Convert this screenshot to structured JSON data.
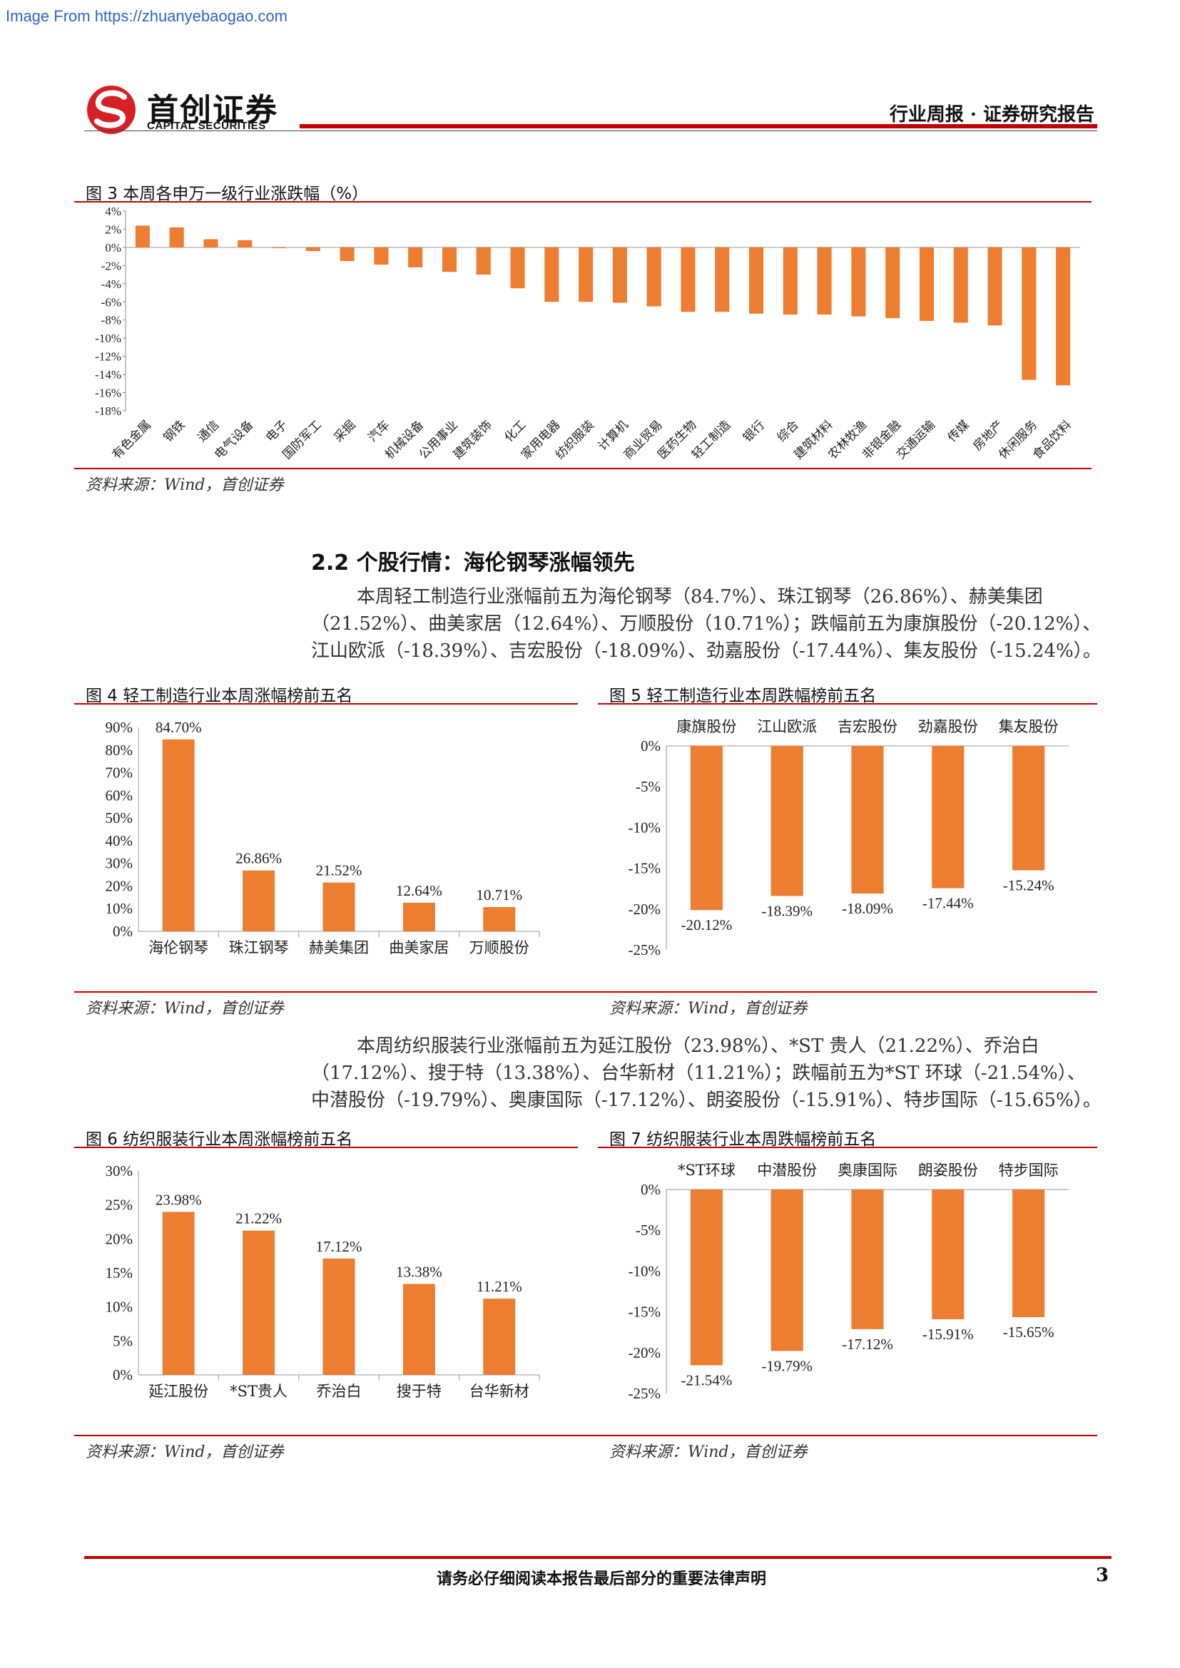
{
  "watermark": "Image From https://zhuanyebaogao.com",
  "header": {
    "logo_cn": "首创证券",
    "logo_en": "CAPITAL SECURITIES",
    "doc_type": "行业周报 · 证券研究报告"
  },
  "figure3": {
    "title": "图 3 本周各申万一级行业涨跌幅（%）",
    "source": "资料来源：Wind，首创证券"
  },
  "section": {
    "title": "2.2 个股行情：海伦钢琴涨幅领先"
  },
  "paragraph1": {
    "line1": "本周轻工制造行业涨幅前五为海伦钢琴（84.7%）、珠江钢琴（26.86%）、赫美集团",
    "line2": "（21.52%）、曲美家居（12.64%）、万顺股份（10.71%）；跌幅前五为康旗股份（-20.12%）、",
    "line3": "江山欧派（-18.39%）、吉宏股份（-18.09%）、劲嘉股份（-17.44%）、集友股份（-15.24%）。"
  },
  "figure4": {
    "title": "图 4 轻工制造行业本周涨幅榜前五名",
    "source": "资料来源：Wind，首创证券"
  },
  "figure5": {
    "title": "图 5 轻工制造行业本周跌幅榜前五名",
    "source": "资料来源：Wind，首创证券"
  },
  "paragraph2": {
    "line1": "本周纺织服装行业涨幅前五为延江股份（23.98%）、*ST 贵人（21.22%）、乔治白",
    "line2": "（17.12%）、搜于特（13.38%）、台华新材（11.21%）；跌幅前五为*ST 环球（-21.54%）、",
    "line3": "中潜股份（-19.79%）、奥康国际（-17.12%）、朗姿股份（-15.91%）、特步国际（-15.65%）。"
  },
  "figure6": {
    "title": "图 6 纺织服装行业本周涨幅榜前五名",
    "source": "资料来源：Wind，首创证券"
  },
  "figure7": {
    "title": "图 7 纺织服装行业本周跌幅榜前五名",
    "source": "资料来源：Wind，首创证券"
  },
  "footer": {
    "disclaimer": "请务必仔细阅读本报告最后部分的重要法律声明",
    "page_number": "3"
  },
  "colors": {
    "bar": "#ed7d31",
    "accent_red": "#c00000"
  },
  "chart_data": [
    {
      "id": "fig3",
      "type": "bar",
      "categories": [
        "有色金属",
        "钢铁",
        "通信",
        "电气设备",
        "电子",
        "国防军工",
        "采掘",
        "汽车",
        "机械设备",
        "公用事业",
        "建筑装饰",
        "化工",
        "家用电器",
        "纺织服装",
        "计算机",
        "商业贸易",
        "医药生物",
        "轻工制造",
        "银行",
        "综合",
        "建筑材料",
        "农林牧渔",
        "非银金融",
        "交通运输",
        "传媒",
        "房地产",
        "休闲服务",
        "食品饮料"
      ],
      "values": [
        2.4,
        2.2,
        0.9,
        0.8,
        0.0,
        -0.4,
        -1.5,
        -1.9,
        -2.2,
        -2.7,
        -3.0,
        -4.5,
        -6.0,
        -6.0,
        -6.1,
        -6.5,
        -7.1,
        -7.1,
        -7.3,
        -7.4,
        -7.4,
        -7.6,
        -7.8,
        -8.1,
        -8.3,
        -8.6,
        -14.6,
        -15.2
      ],
      "ylim": [
        -18,
        4
      ],
      "yticks": [
        "4%",
        "2%",
        "0%",
        "-2%",
        "-4%",
        "-6%",
        "-8%",
        "-10%",
        "-12%",
        "-14%",
        "-16%",
        "-18%"
      ]
    },
    {
      "id": "fig4",
      "type": "bar",
      "categories": [
        "海伦钢琴",
        "珠江钢琴",
        "赫美集团",
        "曲美家居",
        "万顺股份"
      ],
      "values": [
        84.7,
        26.86,
        21.52,
        12.64,
        10.71
      ],
      "labels": [
        "84.70%",
        "26.86%",
        "21.52%",
        "12.64%",
        "10.71%"
      ],
      "ylim": [
        0,
        90
      ],
      "yticks": [
        "90%",
        "80%",
        "70%",
        "60%",
        "50%",
        "40%",
        "30%",
        "20%",
        "10%",
        "0%"
      ]
    },
    {
      "id": "fig5",
      "type": "bar",
      "categories": [
        "康旗股份",
        "江山欧派",
        "吉宏股份",
        "劲嘉股份",
        "集友股份"
      ],
      "values": [
        -20.12,
        -18.39,
        -18.09,
        -17.44,
        -15.24
      ],
      "labels": [
        "-20.12%",
        "-18.39%",
        "-18.09%",
        "-17.44%",
        "-15.24%"
      ],
      "ylim": [
        -25,
        0
      ],
      "yticks": [
        "0%",
        "-5%",
        "-10%",
        "-15%",
        "-20%",
        "-25%"
      ]
    },
    {
      "id": "fig6",
      "type": "bar",
      "categories": [
        "延江股份",
        "*ST贵人",
        "乔治白",
        "搜于特",
        "台华新材"
      ],
      "values": [
        23.98,
        21.22,
        17.12,
        13.38,
        11.21
      ],
      "labels": [
        "23.98%",
        "21.22%",
        "17.12%",
        "13.38%",
        "11.21%"
      ],
      "ylim": [
        0,
        30
      ],
      "yticks": [
        "30%",
        "25%",
        "20%",
        "15%",
        "10%",
        "5%",
        "0%"
      ]
    },
    {
      "id": "fig7",
      "type": "bar",
      "categories": [
        "*ST环球",
        "中潜股份",
        "奥康国际",
        "朗姿股份",
        "特步国际"
      ],
      "values": [
        -21.54,
        -19.79,
        -17.12,
        -15.91,
        -15.65
      ],
      "labels": [
        "-21.54%",
        "-19.79%",
        "-17.12%",
        "-15.91%",
        "-15.65%"
      ],
      "ylim": [
        -25,
        0
      ],
      "yticks": [
        "0%",
        "-5%",
        "-10%",
        "-15%",
        "-20%",
        "-25%"
      ]
    }
  ]
}
